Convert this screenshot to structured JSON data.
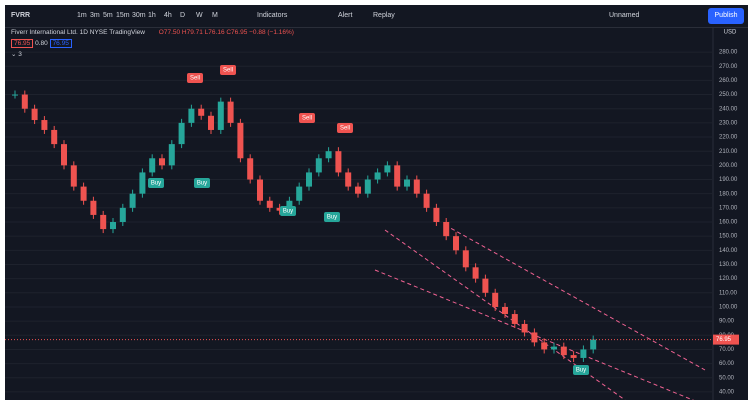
{
  "toolbar": {
    "symbol": "FVRR",
    "intervals": [
      "1m",
      "3m",
      "5m",
      "15m",
      "30m",
      "1h",
      "4h",
      "D",
      "W",
      "M"
    ],
    "indicators": "Indicators",
    "alert": "Alert",
    "replay": "Replay",
    "layout_name": "Unnamed",
    "publish": "Publish"
  },
  "legend": {
    "name": "Fiverr International Ltd.",
    "interval": "1D",
    "exchange": "NYSE",
    "source": "TradingView",
    "ohlc": "O77.50 H79.71 L76.16 C76.95 −0.88 (−1.16%)",
    "bid": "76.95",
    "spread": "0.80",
    "ask": "76.95",
    "indicator_count": "3"
  },
  "chart_data": {
    "type": "candlestick",
    "currency": "USD",
    "values": [
      250,
      240,
      232,
      225,
      215,
      200,
      185,
      175,
      165,
      155,
      160,
      170,
      180,
      195,
      205,
      200,
      215,
      230,
      240,
      235,
      225,
      245,
      230,
      205,
      190,
      175,
      170,
      168,
      175,
      185,
      195,
      205,
      210,
      195,
      185,
      180,
      190,
      195,
      200,
      185,
      190,
      180,
      170,
      160,
      150,
      140,
      128,
      120,
      110,
      100,
      95,
      88,
      82,
      75,
      70,
      72,
      66,
      64,
      70,
      76.95
    ],
    "ylim": [
      34.3,
      297.7
    ],
    "yticks": [
      {
        "value": 40,
        "label": "40.00"
      },
      {
        "value": 50,
        "label": "50.00"
      },
      {
        "value": 60,
        "label": "60.00"
      },
      {
        "value": 70,
        "label": "70.00"
      },
      {
        "value": 80,
        "label": "80.00"
      },
      {
        "value": 90,
        "label": "90.00"
      },
      {
        "value": 100,
        "label": "100.00"
      },
      {
        "value": 110,
        "label": "110.00"
      },
      {
        "value": 120,
        "label": "120.00"
      },
      {
        "value": 130,
        "label": "130.00"
      },
      {
        "value": 140,
        "label": "140.00"
      },
      {
        "value": 150,
        "label": "150.00"
      },
      {
        "value": 160,
        "label": "160.00"
      },
      {
        "value": 170,
        "label": "170.00"
      },
      {
        "value": 180,
        "label": "180.00"
      },
      {
        "value": 190,
        "label": "190.00"
      },
      {
        "value": 200,
        "label": "200.00"
      },
      {
        "value": 210,
        "label": "210.00"
      },
      {
        "value": 220,
        "label": "220.00"
      },
      {
        "value": 230,
        "label": "230.00"
      },
      {
        "value": 240,
        "label": "240.00"
      },
      {
        "value": 250,
        "label": "250.00"
      },
      {
        "value": 260,
        "label": "260.00"
      },
      {
        "value": 270,
        "label": "270.00"
      },
      {
        "value": 280,
        "label": "280.00"
      }
    ],
    "last_price_label": "76.95",
    "up_color": "#26a69a",
    "down_color": "#ef5350",
    "grid": true
  },
  "signals": [
    "Sell",
    "Sell",
    "Buy",
    "Buy",
    "Sell",
    "Sell",
    "Buy",
    "Buy",
    "Buy"
  ]
}
